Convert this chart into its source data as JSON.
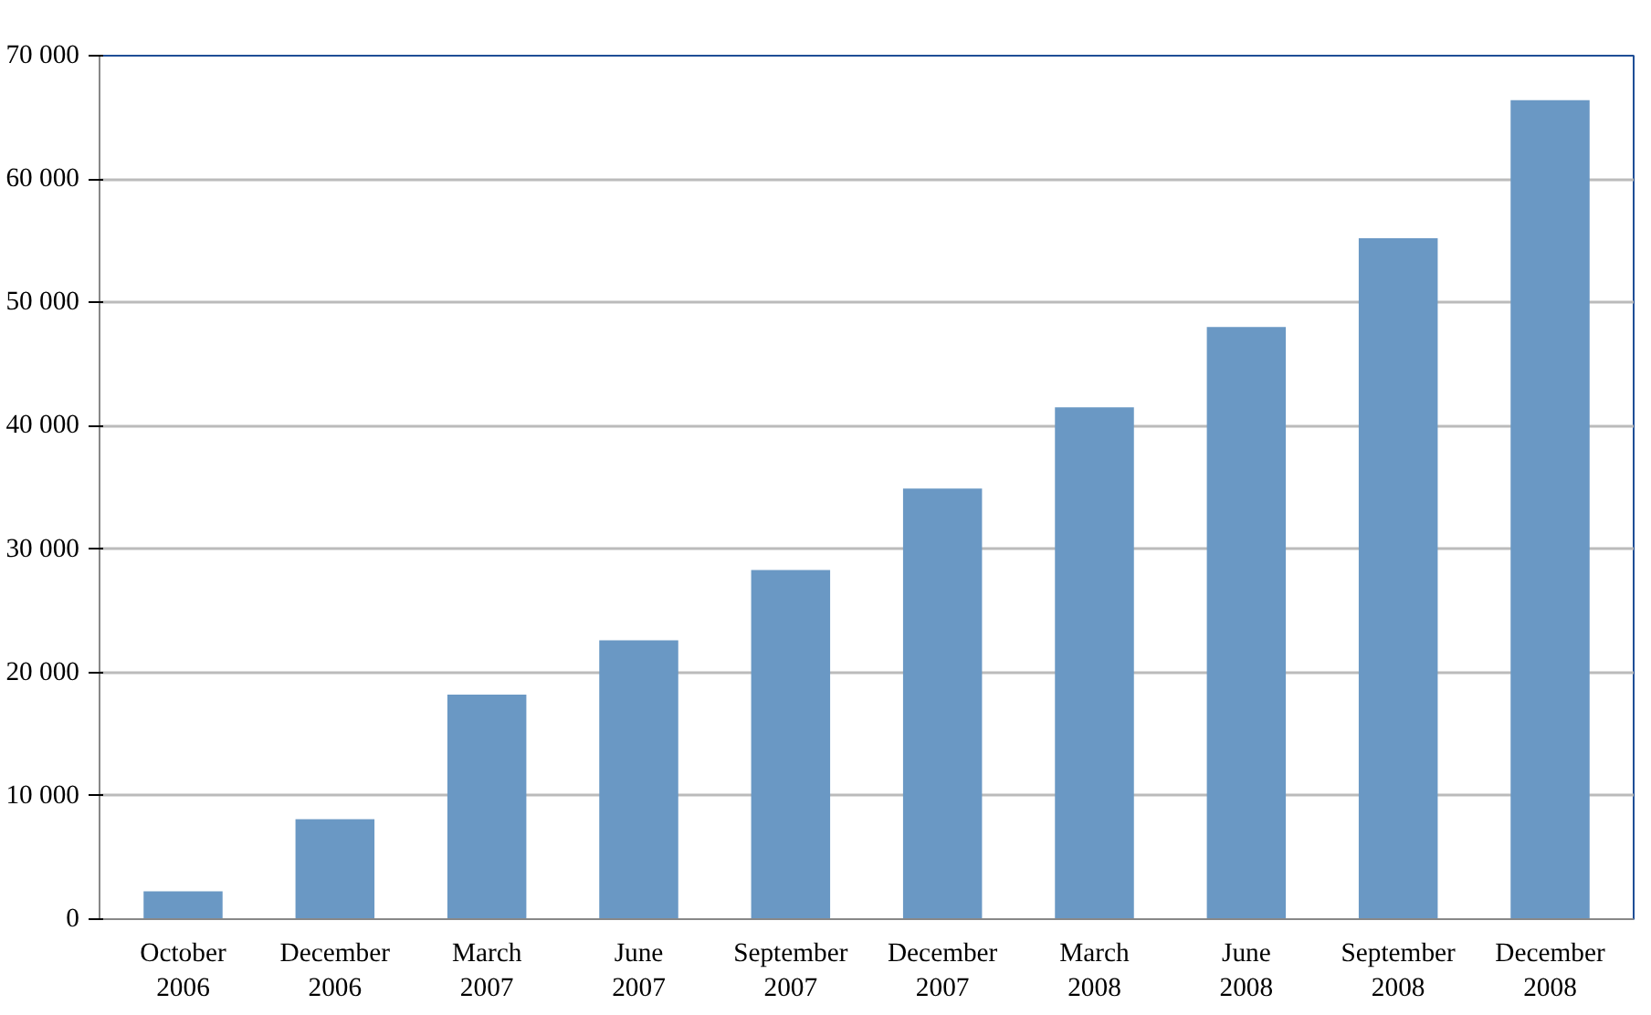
{
  "chart_data": {
    "type": "bar",
    "categories": [
      "October 2006",
      "December 2006",
      "March 2007",
      "June 2007",
      "September 2007",
      "December 2007",
      "March 2008",
      "June 2008",
      "September 2008",
      "December 2008"
    ],
    "values": [
      2250,
      8100,
      18200,
      22600,
      28300,
      34900,
      41500,
      48000,
      55200,
      66400
    ],
    "color": "#6a98c4",
    "ylim": [
      0,
      70000
    ],
    "yticks": [
      {
        "value": 0,
        "label": "0"
      },
      {
        "value": 10000,
        "label": "10 000"
      },
      {
        "value": 20000,
        "label": "20 000"
      },
      {
        "value": 30000,
        "label": "30 000"
      },
      {
        "value": 40000,
        "label": "40 000"
      },
      {
        "value": 50000,
        "label": "50 000"
      },
      {
        "value": 60000,
        "label": "60 000"
      },
      {
        "value": 70000,
        "label": "70 000"
      }
    ],
    "grid": "y"
  }
}
